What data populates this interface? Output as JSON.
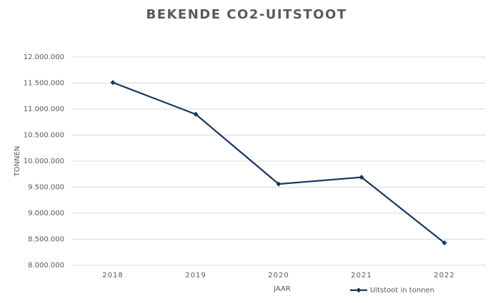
{
  "chart_data": {
    "type": "line",
    "title": "BEKENDE CO2-UITSTOOT",
    "x_label": "JAAR",
    "y_label": "TONNEN",
    "categories": [
      "2018",
      "2019",
      "2020",
      "2021",
      "2022"
    ],
    "series": [
      {
        "name": "Uitstoot in tonnen",
        "color": "#17375e",
        "values": [
          11510000,
          10900000,
          9560000,
          9690000,
          8430000
        ]
      }
    ],
    "ylim": [
      8000000,
      12000000
    ],
    "yticks": [
      {
        "value": 8000000,
        "label": "8.000.000"
      },
      {
        "value": 8500000,
        "label": "8.500.000"
      },
      {
        "value": 9000000,
        "label": "9.000.000"
      },
      {
        "value": 9500000,
        "label": "9.500.000"
      },
      {
        "value": 10000000,
        "label": "10.000.000"
      },
      {
        "value": 10500000,
        "label": "10.500.000"
      },
      {
        "value": 11000000,
        "label": "11.000.000"
      },
      {
        "value": 11500000,
        "label": "11.500.000"
      },
      {
        "value": 12000000,
        "label": "12.000.000"
      }
    ],
    "grid": true,
    "legend": "bottom-right"
  }
}
